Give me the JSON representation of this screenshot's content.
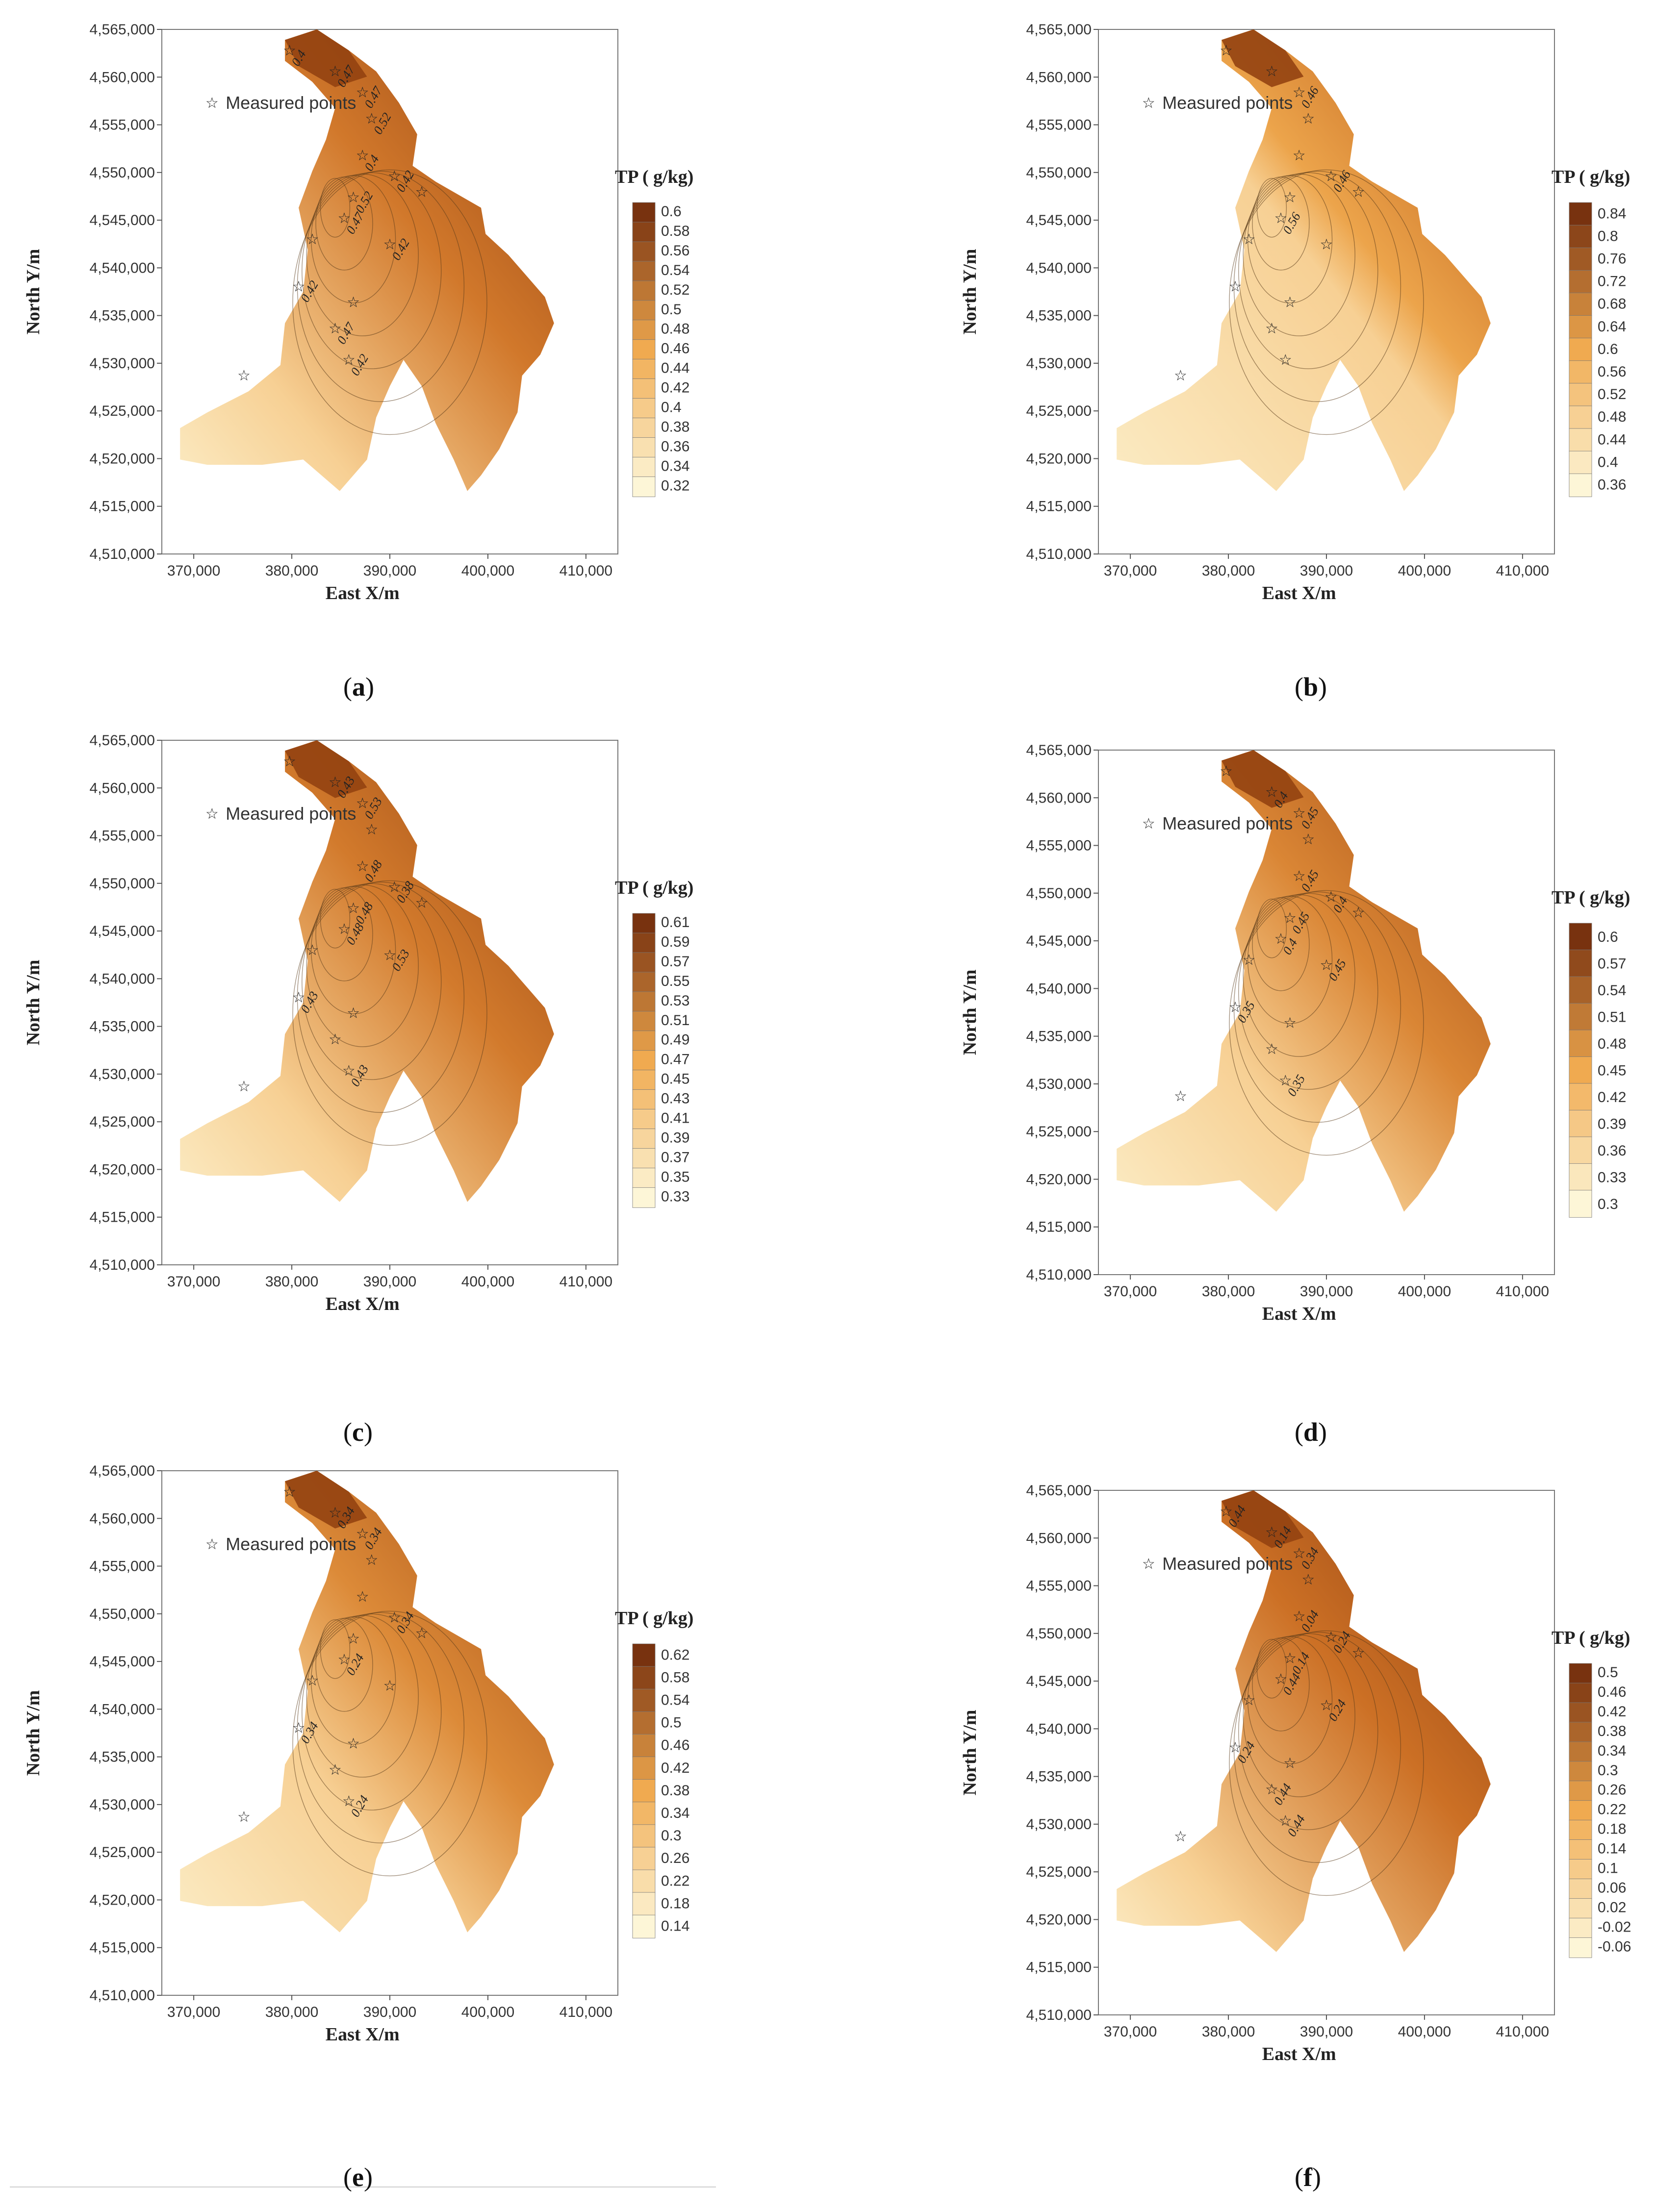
{
  "shared": {
    "x_axis_label": "East X/m",
    "y_axis_label": "North Y/m",
    "x_ticks": [
      "370,000",
      "380,000",
      "390,000",
      "400,000",
      "410,000"
    ],
    "y_ticks": [
      "4,565,000",
      "4,560,000",
      "4,555,000",
      "4,550,000",
      "4,545,000",
      "4,540,000",
      "4,535,000",
      "4,530,000",
      "4,525,000",
      "4,520,000",
      "4,515,000",
      "4,510,000"
    ],
    "legend_label": "Measured points",
    "colorbar_title": "TP (   g/kg)"
  },
  "panels": [
    {
      "id": "a",
      "caption_letter": "a",
      "cb_ticks": [
        "0.6",
        "0.58",
        "0.56",
        "0.54",
        "0.52",
        "0.5",
        "0.48",
        "0.46",
        "0.44",
        "0.42",
        "0.4",
        "0.38",
        "0.36",
        "0.34",
        "0.32"
      ],
      "contour_labels": [
        "0.47",
        "0.42",
        "0.47",
        "0.42",
        "0.42",
        "0.47",
        "0.4",
        "0.52",
        "0.42",
        "0.47",
        "0.4",
        "0.52"
      ],
      "dark_share": 0.62
    },
    {
      "id": "b",
      "caption_letter": "b",
      "cb_ticks": [
        "0.84",
        "0.8",
        "0.76",
        "0.72",
        "0.68",
        "0.64",
        "0.6",
        "0.56",
        "0.52",
        "0.48",
        "0.44",
        "0.4",
        "0.36"
      ],
      "contour_labels": [
        "0.46",
        "0.46",
        "0.56"
      ],
      "dark_share": 0.08
    },
    {
      "id": "c",
      "caption_letter": "c",
      "cb_ticks": [
        "0.61",
        "0.59",
        "0.57",
        "0.55",
        "0.53",
        "0.51",
        "0.49",
        "0.47",
        "0.45",
        "0.43",
        "0.41",
        "0.39",
        "0.37",
        "0.35",
        "0.33"
      ],
      "contour_labels": [
        "0.53",
        "0.38",
        "0.48",
        "0.43",
        "0.43",
        "0.43",
        "0.48",
        "0.48",
        "0.53"
      ],
      "dark_share": 0.6
    },
    {
      "id": "d",
      "caption_letter": "d",
      "cb_ticks": [
        "0.6",
        "0.57",
        "0.54",
        "0.51",
        "0.48",
        "0.45",
        "0.42",
        "0.39",
        "0.36",
        "0.33",
        "0.3"
      ],
      "contour_labels": [
        "0.45",
        "0.4",
        "0.4",
        "0.35",
        "0.35",
        "0.4",
        "0.45",
        "0.45",
        "0.45"
      ],
      "dark_share": 0.45
    },
    {
      "id": "e",
      "caption_letter": "e",
      "cb_ticks": [
        "0.62",
        "0.58",
        "0.54",
        "0.5",
        "0.46",
        "0.42",
        "0.38",
        "0.34",
        "0.3",
        "0.26",
        "0.22",
        "0.18",
        "0.14"
      ],
      "contour_labels": [
        "0.34",
        "0.34",
        "0.24",
        "0.34",
        "0.24",
        "0.34"
      ],
      "dark_share": 0.4
    },
    {
      "id": "f",
      "caption_letter": "f",
      "cb_ticks": [
        "0.5",
        "0.46",
        "0.42",
        "0.38",
        "0.34",
        "0.3",
        "0.26",
        "0.22",
        "0.18",
        "0.14",
        "0.1",
        "0.06",
        "0.02",
        "-0.02",
        "-0.06"
      ],
      "contour_labels": [
        "0.34",
        "0.24",
        "0.44",
        "0.24",
        "0.44",
        "0.14",
        "0.04",
        "0.14",
        "0.24",
        "0.44",
        "0.44"
      ],
      "dark_share": 0.72
    }
  ]
}
